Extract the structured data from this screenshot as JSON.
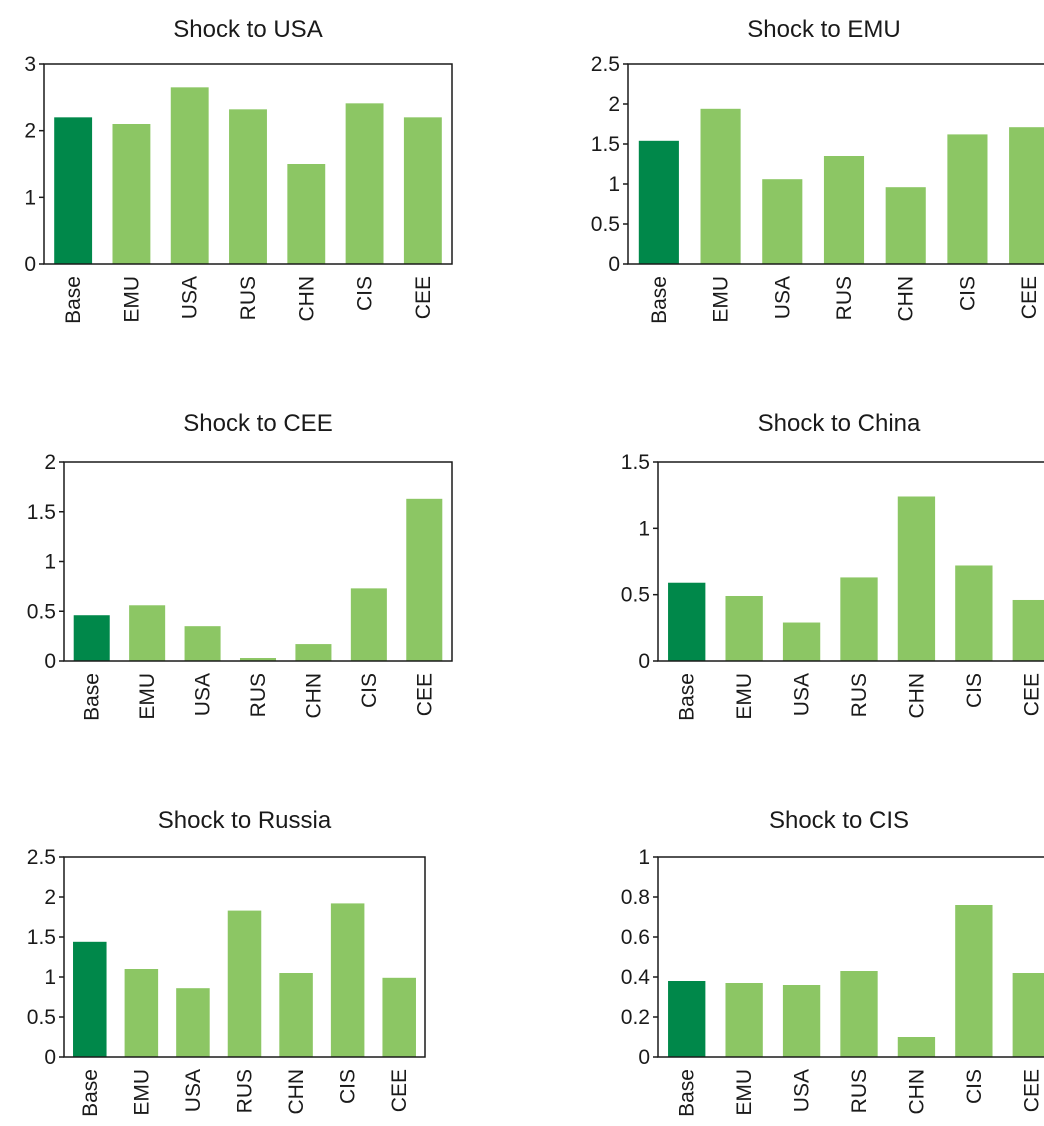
{
  "colors": {
    "base_bar": "#00884a",
    "other_bar": "#8cc664",
    "axis": "#1a1a1a"
  },
  "chart_data": [
    {
      "type": "bar",
      "title": "Shock to USA",
      "categories": [
        "Base",
        "EMU",
        "USA",
        "RUS",
        "CHN",
        "CIS",
        "CEE"
      ],
      "values": [
        2.2,
        2.1,
        2.65,
        2.32,
        1.5,
        2.41,
        2.2
      ],
      "ylim": [
        0,
        3
      ],
      "yticks": [
        0,
        1,
        2,
        3
      ],
      "xlabel": "",
      "ylabel": "",
      "grid": false,
      "legend": "none"
    },
    {
      "type": "bar",
      "title": "Shock to EMU",
      "categories": [
        "Base",
        "EMU",
        "USA",
        "RUS",
        "CHN",
        "CIS",
        "CEE"
      ],
      "values": [
        1.54,
        1.94,
        1.06,
        1.35,
        0.96,
        1.62,
        1.71
      ],
      "ylim": [
        0,
        2.5
      ],
      "yticks": [
        0,
        0.5,
        1,
        1.5,
        2,
        2.5
      ],
      "xlabel": "",
      "ylabel": "",
      "grid": false,
      "legend": "none"
    },
    {
      "type": "bar",
      "title": "Shock to CEE",
      "categories": [
        "Base",
        "EMU",
        "USA",
        "RUS",
        "CHN",
        "CIS",
        "CEE"
      ],
      "values": [
        0.46,
        0.56,
        0.35,
        0.03,
        0.17,
        0.73,
        1.63
      ],
      "ylim": [
        0,
        2
      ],
      "yticks": [
        0,
        0.5,
        1,
        1.5,
        2
      ],
      "xlabel": "",
      "ylabel": "",
      "grid": false,
      "legend": "none"
    },
    {
      "type": "bar",
      "title": "Shock to China",
      "categories": [
        "Base",
        "EMU",
        "USA",
        "RUS",
        "CHN",
        "CIS",
        "CEE"
      ],
      "values": [
        0.59,
        0.49,
        0.29,
        0.63,
        1.24,
        0.72,
        0.46
      ],
      "ylim": [
        0,
        1.5
      ],
      "yticks": [
        0,
        0.5,
        1,
        1.5
      ],
      "xlabel": "",
      "ylabel": "",
      "grid": false,
      "legend": "none"
    },
    {
      "type": "bar",
      "title": "Shock to Russia",
      "categories": [
        "Base",
        "EMU",
        "USA",
        "RUS",
        "CHN",
        "CIS",
        "CEE"
      ],
      "values": [
        1.44,
        1.1,
        0.86,
        1.83,
        1.05,
        1.92,
        0.99
      ],
      "ylim": [
        0,
        2.5
      ],
      "yticks": [
        0,
        0.5,
        1,
        1.5,
        2,
        2.5
      ],
      "xlabel": "",
      "ylabel": "",
      "grid": false,
      "legend": "none"
    },
    {
      "type": "bar",
      "title": "Shock to CIS",
      "categories": [
        "Base",
        "EMU",
        "USA",
        "RUS",
        "CHN",
        "CIS",
        "CEE"
      ],
      "values": [
        0.38,
        0.37,
        0.36,
        0.43,
        0.1,
        0.76,
        0.42
      ],
      "ylim": [
        0,
        1
      ],
      "yticks": [
        0,
        0.2,
        0.4,
        0.6,
        0.8,
        1
      ],
      "xlabel": "",
      "ylabel": "",
      "grid": false,
      "legend": "none"
    }
  ]
}
